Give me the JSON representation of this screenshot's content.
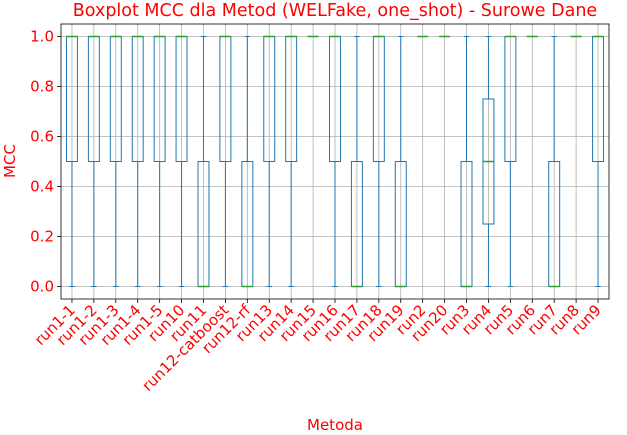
{
  "chart_data": {
    "type": "boxplot",
    "title": "Boxplot MCC dla Metod (WELFake, one_shot) - Surowe Dane",
    "xlabel": "Metoda",
    "ylabel": "MCC",
    "ylim": [
      -0.05,
      1.05
    ],
    "yticks": [
      "0.0",
      "0.2",
      "0.4",
      "0.6",
      "0.8",
      "1.0"
    ],
    "grid": true,
    "colors": {
      "box": "#1f77b4",
      "median": "#2ca02c",
      "text": "#ff0000"
    },
    "categories": [
      "run1-1",
      "run1-2",
      "run1-3",
      "run1-4",
      "run1-5",
      "run10",
      "run11",
      "run12-catboost",
      "run12-rf",
      "run13",
      "run14",
      "run15",
      "run16",
      "run17",
      "run18",
      "run19",
      "run2",
      "run20",
      "run3",
      "run4",
      "run5",
      "run6",
      "run7",
      "run8",
      "run9"
    ],
    "boxes": [
      {
        "q1": 0.5,
        "median": 1.0,
        "q3": 1.0,
        "whislo": 0.0,
        "whishi": 1.0
      },
      {
        "q1": 0.5,
        "median": 1.0,
        "q3": 1.0,
        "whislo": 0.0,
        "whishi": 1.0
      },
      {
        "q1": 0.5,
        "median": 1.0,
        "q3": 1.0,
        "whislo": 0.0,
        "whishi": 1.0
      },
      {
        "q1": 0.5,
        "median": 1.0,
        "q3": 1.0,
        "whislo": 0.0,
        "whishi": 1.0
      },
      {
        "q1": 0.5,
        "median": 1.0,
        "q3": 1.0,
        "whislo": 0.0,
        "whishi": 1.0
      },
      {
        "q1": 0.5,
        "median": 1.0,
        "q3": 1.0,
        "whislo": 0.0,
        "whishi": 1.0
      },
      {
        "q1": 0.0,
        "median": 0.0,
        "q3": 0.5,
        "whislo": 0.0,
        "whishi": 1.0
      },
      {
        "q1": 0.5,
        "median": 1.0,
        "q3": 1.0,
        "whislo": 0.0,
        "whishi": 1.0
      },
      {
        "q1": 0.0,
        "median": 0.0,
        "q3": 0.5,
        "whislo": 0.0,
        "whishi": 1.0
      },
      {
        "q1": 0.5,
        "median": 1.0,
        "q3": 1.0,
        "whislo": 0.0,
        "whishi": 1.0
      },
      {
        "q1": 0.5,
        "median": 1.0,
        "q3": 1.0,
        "whislo": 0.0,
        "whishi": 1.0
      },
      {
        "q1": 1.0,
        "median": 1.0,
        "q3": 1.0,
        "whislo": 1.0,
        "whishi": 1.0
      },
      {
        "q1": 0.5,
        "median": 1.0,
        "q3": 1.0,
        "whislo": 0.0,
        "whishi": 1.0
      },
      {
        "q1": 0.0,
        "median": 0.0,
        "q3": 0.5,
        "whislo": 0.0,
        "whishi": 1.0
      },
      {
        "q1": 0.5,
        "median": 1.0,
        "q3": 1.0,
        "whislo": 0.0,
        "whishi": 1.0
      },
      {
        "q1": 0.0,
        "median": 0.0,
        "q3": 0.5,
        "whislo": 0.0,
        "whishi": 1.0
      },
      {
        "q1": 1.0,
        "median": 1.0,
        "q3": 1.0,
        "whislo": 1.0,
        "whishi": 1.0
      },
      {
        "q1": 1.0,
        "median": 1.0,
        "q3": 1.0,
        "whislo": 1.0,
        "whishi": 1.0
      },
      {
        "q1": 0.0,
        "median": 0.0,
        "q3": 0.5,
        "whislo": 0.0,
        "whishi": 1.0
      },
      {
        "q1": 0.25,
        "median": 0.5,
        "q3": 0.75,
        "whislo": 0.0,
        "whishi": 1.0
      },
      {
        "q1": 0.5,
        "median": 1.0,
        "q3": 1.0,
        "whislo": 0.0,
        "whishi": 1.0
      },
      {
        "q1": 1.0,
        "median": 1.0,
        "q3": 1.0,
        "whislo": 1.0,
        "whishi": 1.0
      },
      {
        "q1": 0.0,
        "median": 0.0,
        "q3": 0.5,
        "whislo": 0.0,
        "whishi": 1.0
      },
      {
        "q1": 1.0,
        "median": 1.0,
        "q3": 1.0,
        "whislo": 1.0,
        "whishi": 1.0
      },
      {
        "q1": 0.5,
        "median": 1.0,
        "q3": 1.0,
        "whislo": 0.0,
        "whishi": 1.0
      }
    ]
  }
}
